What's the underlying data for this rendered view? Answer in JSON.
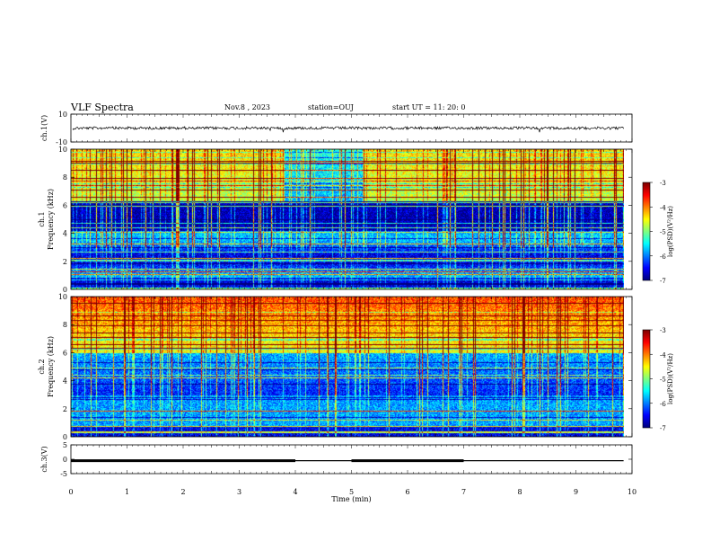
{
  "header": {
    "title": "VLF Spectra",
    "date": "Nov.8 , 2023",
    "station": "station=OUJ",
    "start_time": "start UT = 11: 20: 0"
  },
  "chart_data": [
    {
      "type": "line",
      "name": "ch1-waveform",
      "ylabel": "ch.1(V)",
      "xlim": [
        0,
        10
      ],
      "ylim": [
        -10,
        10
      ],
      "yticks": [
        "10",
        "-10"
      ],
      "x_end": 9.85,
      "level": 0,
      "noise_amplitude": 1.2
    },
    {
      "type": "heatmap",
      "name": "ch1-spectrogram",
      "ylabel": "ch.1\nFrequency (kHz)",
      "ylabel_line1": "ch.1",
      "ylabel_line2": "Frequency (kHz)",
      "xlim": [
        0,
        10
      ],
      "ylim": [
        0,
        10
      ],
      "yticks": [
        "0",
        "2",
        "4",
        "6",
        "8",
        "10"
      ],
      "x_end": 9.85,
      "colorbar": {
        "label": "log(PSD)(V²/Hz)",
        "range": [
          -7,
          -3
        ],
        "ticks": [
          "-3",
          "-4",
          "-5",
          "-6",
          "-7"
        ]
      }
    },
    {
      "type": "heatmap",
      "name": "ch2-spectrogram",
      "ylabel": "ch.2\nFrequency (kHz)",
      "ylabel_line1": "ch.2",
      "ylabel_line2": "Frequency (kHz)",
      "xlim": [
        0,
        10
      ],
      "ylim": [
        0,
        10
      ],
      "yticks": [
        "0",
        "2",
        "4",
        "6",
        "8",
        "10"
      ],
      "x_end": 9.85,
      "colorbar": {
        "label": "log(PSD)(V²/Hz)",
        "range": [
          -7,
          -3
        ],
        "ticks": [
          "-3",
          "-4",
          "-5",
          "-6",
          "-7"
        ]
      }
    },
    {
      "type": "line",
      "name": "ch3-signal",
      "ylabel": "ch.3(V)",
      "xlim": [
        0,
        10
      ],
      "ylim": [
        -5,
        5
      ],
      "yticks": [
        "5",
        "0",
        "-5"
      ],
      "segments": [
        {
          "x": [
            0,
            4
          ],
          "y": -0.5,
          "thick": true
        },
        {
          "x": [
            4,
            5
          ],
          "y": -0.5,
          "thick": false
        },
        {
          "x": [
            5,
            7
          ],
          "y": -0.5,
          "thick": true
        },
        {
          "x": [
            7,
            9.85
          ],
          "y": -0.5,
          "thick": false
        }
      ]
    }
  ],
  "xaxis": {
    "label": "Time (min)",
    "ticks": [
      "0",
      "1",
      "2",
      "3",
      "4",
      "5",
      "6",
      "7",
      "8",
      "9",
      "10"
    ]
  }
}
